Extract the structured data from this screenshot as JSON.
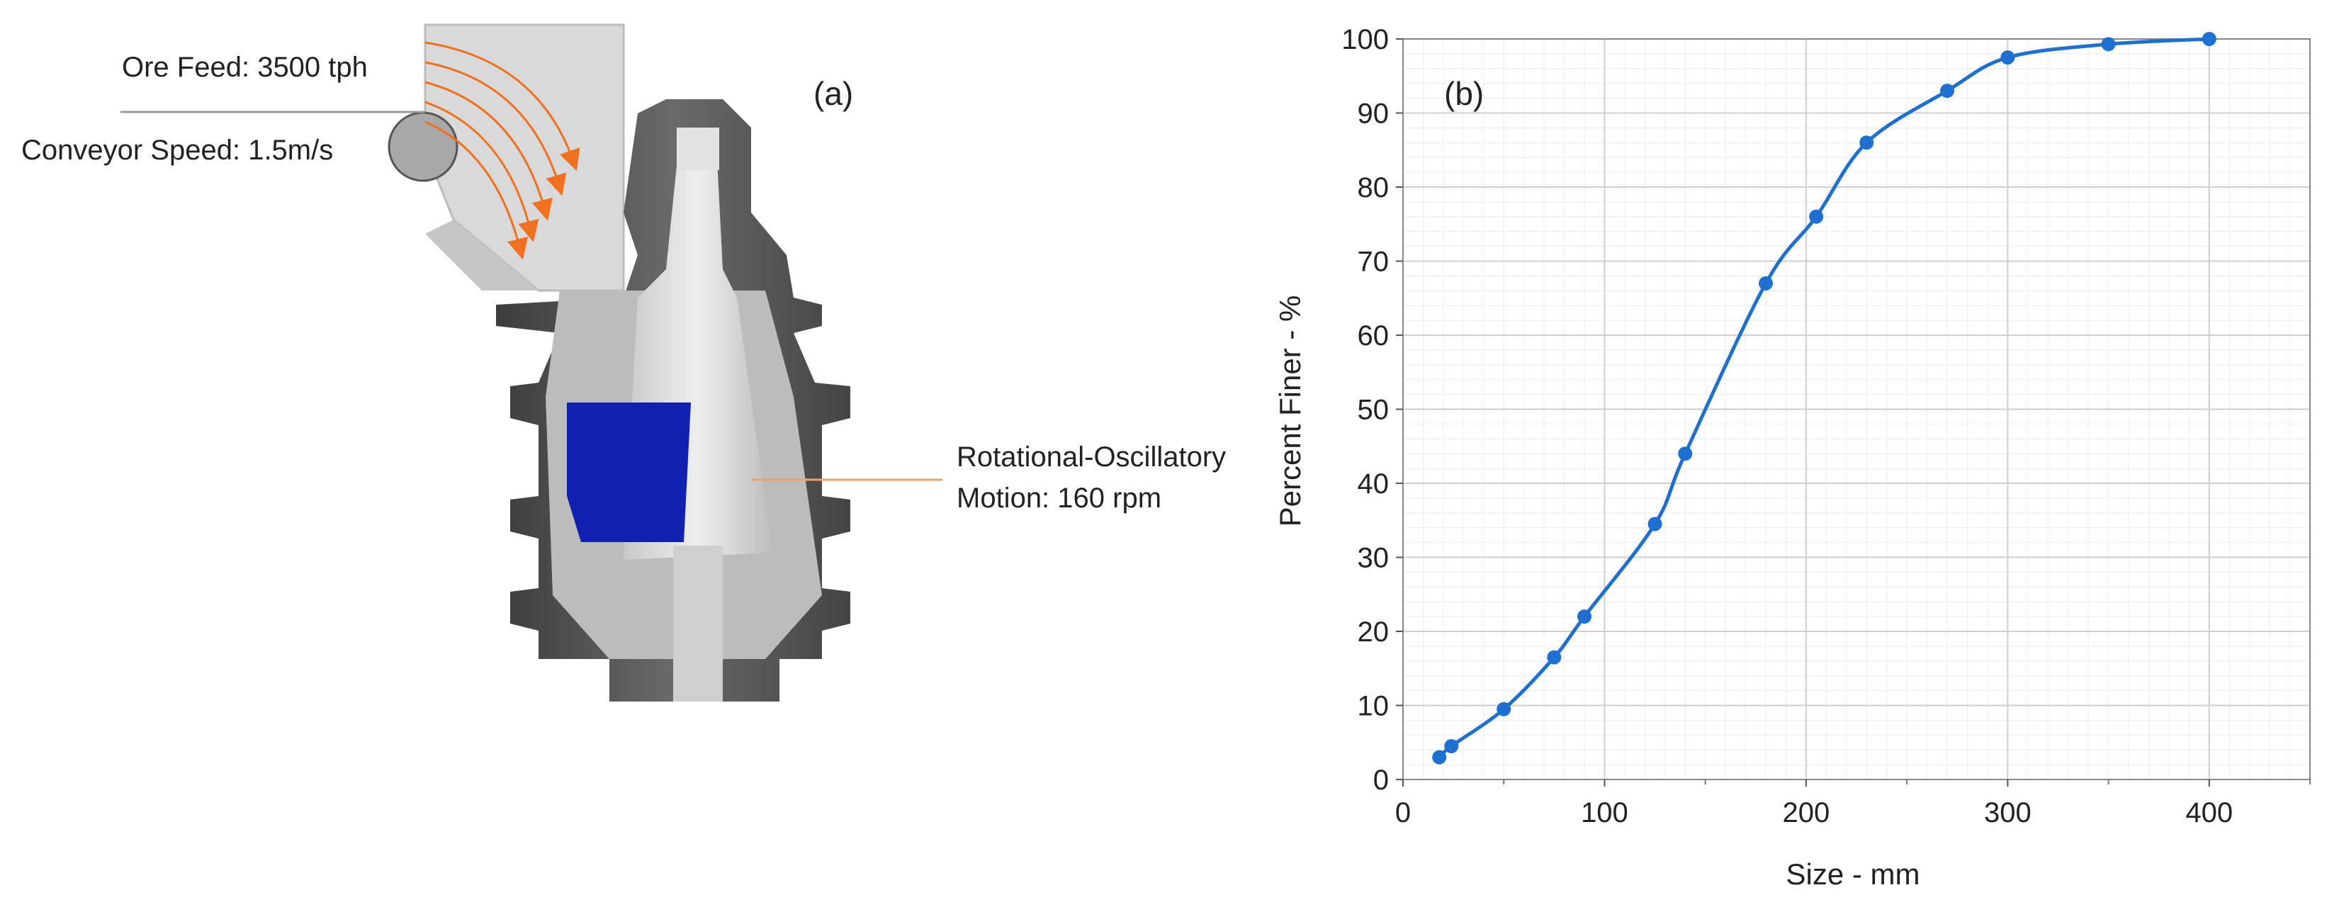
{
  "panel_a": {
    "label": "(a)",
    "ore_feed": "Ore Feed: 3500 tph",
    "conveyor_speed": "Conveyor Speed: 1.5m/s",
    "motion_line1": "Rotational-Oscillatory",
    "motion_line2": "Motion: 160 rpm",
    "colors": {
      "casing": "#555555",
      "feed_arrows": "#f07020",
      "ore_zone": "#1020b0",
      "mantle": "#d8d8d8"
    }
  },
  "chart_data": {
    "type": "line",
    "panel_label": "(b)",
    "xlabel": "Size - mm",
    "ylabel": "Percent Finer - %",
    "xlim": [
      0,
      450
    ],
    "ylim": [
      0,
      100
    ],
    "x_ticks": [
      0,
      100,
      200,
      300,
      400
    ],
    "y_ticks": [
      0,
      10,
      20,
      30,
      40,
      50,
      60,
      70,
      80,
      90,
      100
    ],
    "grid": true,
    "series": [
      {
        "color": "#1f6fd0",
        "x": [
          18,
          24,
          50,
          75,
          90,
          125,
          140,
          180,
          205,
          230,
          270,
          300,
          350,
          400
        ],
        "y": [
          3,
          4.5,
          9.5,
          16.5,
          22,
          34.5,
          44,
          67,
          76,
          86,
          93,
          97.5,
          99.3,
          100
        ]
      }
    ]
  }
}
